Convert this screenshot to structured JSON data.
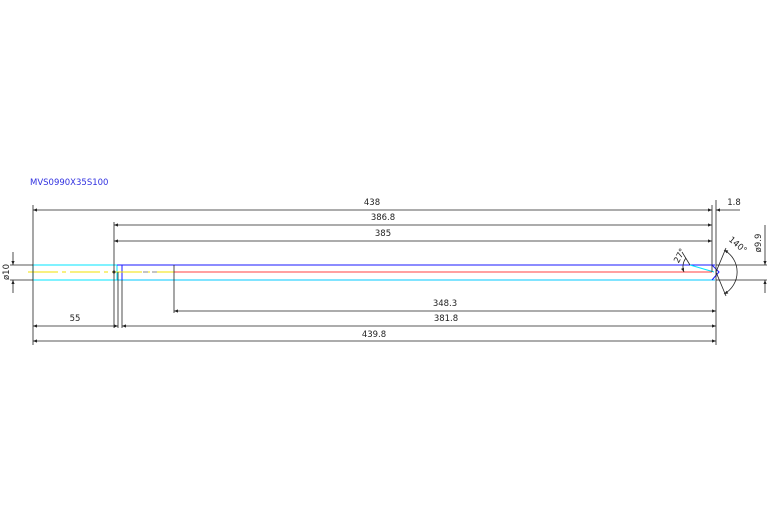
{
  "drawing": {
    "part_number": "MVS0990X35S100",
    "dimensions": {
      "overall_438": "438",
      "tip_1_8": "1.8",
      "d_386_8": "386.8",
      "d_385": "385",
      "d_348_3": "348.3",
      "d_381_8": "381.8",
      "shank_55": "55",
      "total_439_8": "439.8",
      "shank_dia": "ø10",
      "body_dia": "ø9.9",
      "angle_27": "27°",
      "point_angle": "140°"
    },
    "colors": {
      "shank": "#00e5ff",
      "body_outline": "#1a1aff",
      "centerline": "#f0e000",
      "flute": "#ff4040",
      "title": "#3030e0"
    }
  }
}
